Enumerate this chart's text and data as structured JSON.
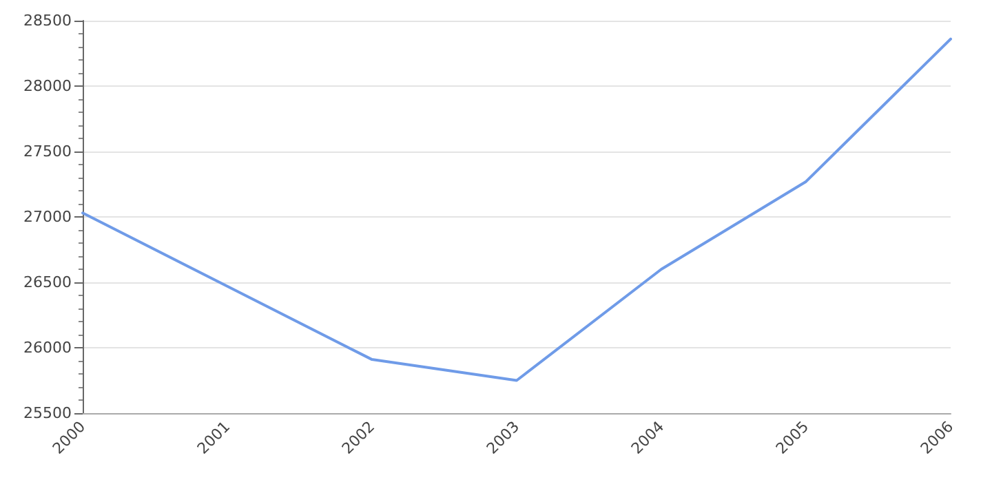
{
  "chart_data": {
    "type": "line",
    "categories": [
      "2000",
      "2001",
      "2002",
      "2003",
      "2004",
      "2005",
      "2006"
    ],
    "series": [
      {
        "color": "#6f9be8",
        "values": [
          27030,
          26470,
          25910,
          25750,
          26600,
          27270,
          28360
        ]
      }
    ],
    "ylim": [
      25500,
      28500
    ],
    "yticks": [
      25500,
      26000,
      26500,
      27000,
      27500,
      28000,
      28500
    ],
    "grid": "y",
    "marker": "none",
    "line_style": "solid"
  }
}
